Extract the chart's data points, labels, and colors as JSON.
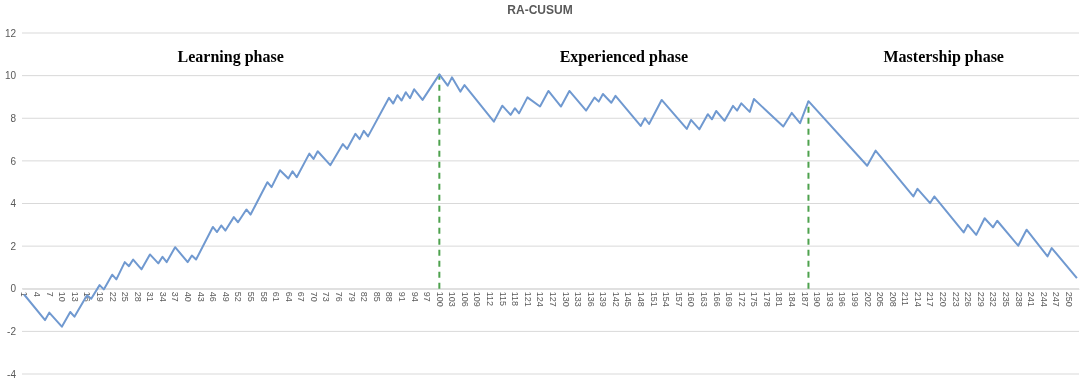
{
  "chart_data": {
    "type": "line",
    "title": "RA-CUSUM",
    "annotations": [
      "Learning phase",
      "Experienced phase",
      "Mastership phase"
    ],
    "x": [
      1,
      6,
      7,
      10,
      12,
      13,
      16,
      17,
      19,
      20,
      22,
      23,
      25,
      26,
      27,
      29,
      31,
      33,
      34,
      35,
      37,
      40,
      41,
      42,
      46,
      47,
      48,
      49,
      51,
      52,
      54,
      55,
      59,
      60,
      62,
      64,
      65,
      66,
      69,
      70,
      71,
      74,
      77,
      78,
      80,
      81,
      82,
      83,
      88,
      89,
      90,
      91,
      92,
      93,
      94,
      96,
      100,
      102,
      103,
      105,
      106,
      113,
      115,
      117,
      118,
      119,
      121,
      124,
      126,
      129,
      131,
      135,
      137,
      138,
      139,
      141,
      142,
      148,
      149,
      150,
      153,
      159,
      160,
      162,
      164,
      165,
      166,
      168,
      170,
      171,
      172,
      174,
      175,
      182,
      184,
      186,
      188,
      202,
      204,
      213,
      214,
      217,
      218,
      225,
      226,
      228,
      230,
      232,
      233,
      238,
      240,
      245,
      246,
      252
    ],
    "series": [
      {
        "color": "#7099d0",
        "values": [
          -0.27,
          -1.47,
          -1.12,
          -1.78,
          -1.09,
          -1.31,
          -0.31,
          -0.47,
          0.17,
          -0.03,
          0.66,
          0.44,
          1.25,
          1.06,
          1.37,
          0.91,
          1.61,
          1.19,
          1.5,
          1.25,
          1.95,
          1.25,
          1.56,
          1.37,
          2.9,
          2.66,
          2.97,
          2.73,
          3.36,
          3.12,
          3.72,
          3.48,
          5.0,
          4.77,
          5.56,
          5.17,
          5.51,
          5.23,
          6.34,
          6.09,
          6.45,
          5.8,
          6.79,
          6.56,
          7.27,
          7.02,
          7.41,
          7.15,
          8.96,
          8.69,
          9.08,
          8.83,
          9.22,
          8.94,
          9.36,
          8.86,
          10.06,
          9.53,
          9.92,
          9.25,
          9.56,
          7.84,
          8.59,
          8.16,
          8.47,
          8.23,
          8.98,
          8.55,
          9.28,
          8.55,
          9.28,
          8.36,
          8.97,
          8.78,
          9.14,
          8.73,
          9.05,
          7.64,
          8.0,
          7.73,
          8.86,
          7.5,
          7.92,
          7.48,
          8.19,
          7.95,
          8.34,
          7.88,
          8.58,
          8.36,
          8.7,
          8.3,
          8.9,
          7.61,
          8.25,
          7.77,
          8.8,
          5.77,
          6.48,
          4.33,
          4.69,
          4.02,
          4.33,
          2.64,
          3.0,
          2.53,
          3.31,
          2.88,
          3.19,
          2.02,
          2.77,
          1.52,
          1.91,
          0.5
        ]
      }
    ],
    "xlim": [
      0.5,
      252.5
    ],
    "xticks": [
      1,
      4,
      7,
      10,
      13,
      16,
      19,
      22,
      25,
      28,
      31,
      34,
      37,
      40,
      43,
      46,
      49,
      52,
      55,
      58,
      61,
      64,
      67,
      70,
      73,
      76,
      79,
      82,
      85,
      88,
      91,
      94,
      97,
      100,
      103,
      106,
      109,
      112,
      115,
      118,
      121,
      124,
      127,
      130,
      133,
      136,
      139,
      142,
      145,
      148,
      151,
      154,
      157,
      160,
      163,
      166,
      169,
      172,
      175,
      178,
      181,
      184,
      187,
      190,
      193,
      196,
      199,
      202,
      205,
      208,
      211,
      214,
      217,
      220,
      223,
      226,
      229,
      232,
      235,
      238,
      241,
      244,
      247,
      250
    ],
    "ylim": [
      -4,
      12
    ],
    "yticks": [
      -4,
      -2,
      0,
      2,
      4,
      6,
      8,
      10,
      12
    ],
    "grid": "y",
    "marker": "none",
    "line_style": "solid",
    "ref_lines": [
      {
        "axis": "x",
        "value": 100,
        "color": "#4ea24e",
        "line_style": "dashed"
      },
      {
        "axis": "x",
        "value": 188,
        "color": "#4ea24e",
        "line_style": "dashed"
      }
    ]
  }
}
